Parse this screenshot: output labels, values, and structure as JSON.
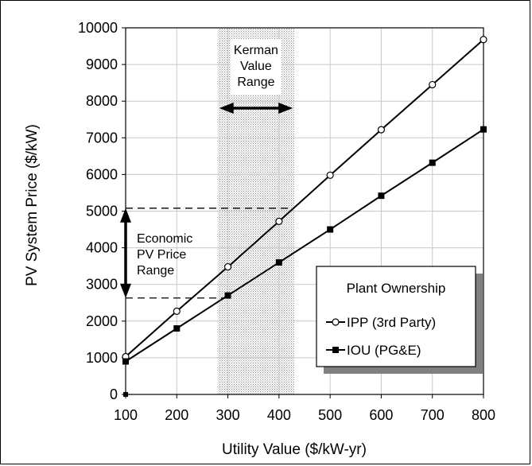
{
  "chart_data": {
    "type": "line",
    "xlabel": "Utility Value ($/kW-yr)",
    "ylabel": "PV System Price ($/kW)",
    "xlim": [
      100,
      800
    ],
    "ylim": [
      0,
      10000
    ],
    "x_ticks": [
      100,
      200,
      300,
      400,
      500,
      600,
      700,
      800
    ],
    "y_ticks": [
      0,
      1000,
      2000,
      3000,
      4000,
      5000,
      6000,
      7000,
      8000,
      9000,
      10000
    ],
    "grid": true,
    "x": [
      100,
      200,
      300,
      400,
      500,
      600,
      700,
      800
    ],
    "series": [
      {
        "name": "IPP (3rd Party)",
        "marker": "open-circle",
        "values": [
          1030,
          2270,
          3480,
          4720,
          5980,
          7220,
          8450,
          9680
        ]
      },
      {
        "name": "IOU (PG&E)",
        "marker": "filled-square",
        "values": [
          900,
          1800,
          2700,
          3600,
          4500,
          5420,
          6320,
          7230
        ]
      }
    ],
    "legend": {
      "title": "Plant Ownership",
      "position": "lower-right"
    },
    "kerman_range": {
      "label_lines": [
        "Kerman",
        "Value",
        "Range"
      ],
      "x_from": 280,
      "x_to": 430
    },
    "economic_range": {
      "label_lines": [
        "Economic",
        "PV Price",
        "Range"
      ],
      "y_from": 2630,
      "y_to": 5080
    },
    "stray_point": {
      "x": 100,
      "y": 0
    }
  }
}
